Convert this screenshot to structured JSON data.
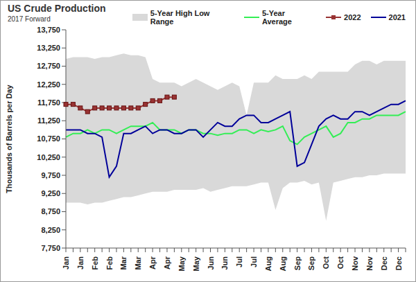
{
  "chart_data": {
    "type": "line",
    "title": "US Crude Production",
    "subtitle": "2017 Forward",
    "y_label": "Thousands of Barrels per Day",
    "categories": [
      "Jan",
      null,
      "Jan",
      null,
      "Feb",
      null,
      "Feb",
      null,
      "Mar",
      null,
      "Mar",
      null,
      "Apr",
      null,
      "Apr",
      null,
      "May",
      null,
      "May",
      null,
      "Jun",
      null,
      "Jun",
      null,
      "Jul",
      null,
      "Jul",
      null,
      "Aug",
      null,
      "Aug",
      null,
      "Sep",
      null,
      "Sep",
      null,
      "Oct",
      null,
      "Oct",
      null,
      "Nov",
      null,
      "Nov",
      null,
      "Dec",
      null,
      "Dec",
      null
    ],
    "ylim": [
      7750,
      13750
    ],
    "yticks": [
      {
        "value": 7750,
        "label": "7,750"
      },
      {
        "value": 8250,
        "label": "8,250"
      },
      {
        "value": 8750,
        "label": "8,750"
      },
      {
        "value": 9250,
        "label": "9,250"
      },
      {
        "value": 9750,
        "label": "9,750"
      },
      {
        "value": 10250,
        "label": "10,250"
      },
      {
        "value": 10750,
        "label": "10,750"
      },
      {
        "value": 11250,
        "label": "11,250"
      },
      {
        "value": 11750,
        "label": "11,750"
      },
      {
        "value": 12250,
        "label": "12,250"
      },
      {
        "value": 12750,
        "label": "12,750"
      },
      {
        "value": 13250,
        "label": "13,250"
      },
      {
        "value": 13750,
        "label": "13,750"
      }
    ],
    "grid": false,
    "legend": "top",
    "series": [
      {
        "name": "5-Year High Low Range",
        "type": "area",
        "color": "#d9d9d9",
        "values": [
          [
            9000,
            12950
          ],
          [
            9000,
            13000
          ],
          [
            9000,
            13000
          ],
          [
            8950,
            13000
          ],
          [
            9000,
            12950
          ],
          [
            9000,
            13000
          ],
          [
            9050,
            13000
          ],
          [
            9100,
            13050
          ],
          [
            9150,
            13100
          ],
          [
            9150,
            13050
          ],
          [
            9200,
            13050
          ],
          [
            9250,
            13000
          ],
          [
            9300,
            12400
          ],
          [
            9300,
            12300
          ],
          [
            9300,
            12300
          ],
          [
            9350,
            12300
          ],
          [
            9350,
            12200
          ],
          [
            9350,
            12300
          ],
          [
            9350,
            12400
          ],
          [
            9400,
            12300
          ],
          [
            9300,
            12200
          ],
          [
            9350,
            12100
          ],
          [
            9400,
            12200
          ],
          [
            9450,
            12300
          ],
          [
            9450,
            12200
          ],
          [
            9450,
            11400
          ],
          [
            9500,
            12300
          ],
          [
            9550,
            12300
          ],
          [
            9550,
            12300
          ],
          [
            8800,
            12500
          ],
          [
            9400,
            12400
          ],
          [
            9550,
            12400
          ],
          [
            9550,
            12400
          ],
          [
            9600,
            12500
          ],
          [
            9500,
            12400
          ],
          [
            9550,
            12600
          ],
          [
            8500,
            12600
          ],
          [
            9550,
            12600
          ],
          [
            9600,
            12600
          ],
          [
            9650,
            12600
          ],
          [
            9700,
            12800
          ],
          [
            9700,
            12900
          ],
          [
            9750,
            12900
          ],
          [
            9750,
            12800
          ],
          [
            9800,
            12900
          ],
          [
            9800,
            12900
          ],
          [
            9800,
            12900
          ],
          [
            9800,
            12900
          ]
        ]
      },
      {
        "name": "5-Year Average",
        "type": "line",
        "color": "#33ee55",
        "values": [
          10800,
          10900,
          10900,
          11000,
          10900,
          11000,
          11000,
          10900,
          11000,
          11100,
          11100,
          11100,
          11200,
          11000,
          11000,
          11000,
          10900,
          11000,
          11000,
          10900,
          10900,
          10850,
          10900,
          10900,
          11000,
          11000,
          10900,
          11000,
          10950,
          11000,
          11100,
          10700,
          10600,
          10800,
          10900,
          11000,
          11100,
          10800,
          10900,
          11200,
          11200,
          11300,
          11300,
          11400,
          11400,
          11400,
          11400,
          11500
        ]
      },
      {
        "name": "2022",
        "type": "line",
        "color": "#993333",
        "marker": "square",
        "values": [
          11700,
          11700,
          11600,
          11500,
          11600,
          11600,
          11600,
          11600,
          11600,
          11600,
          11600,
          11700,
          11800,
          11800,
          11900,
          11900,
          null,
          null,
          null,
          null,
          null,
          null,
          null,
          null,
          null,
          null,
          null,
          null,
          null,
          null,
          null,
          null,
          null,
          null,
          null,
          null,
          null,
          null,
          null,
          null,
          null,
          null,
          null,
          null,
          null,
          null,
          null,
          null
        ]
      },
      {
        "name": "2021",
        "type": "line",
        "color": "#000099",
        "values": [
          11000,
          11000,
          11000,
          10900,
          10900,
          10800,
          9700,
          10000,
          10900,
          10900,
          11000,
          11100,
          10900,
          11000,
          11000,
          10900,
          10900,
          11000,
          11000,
          10800,
          11000,
          11200,
          11100,
          11100,
          11300,
          11400,
          11400,
          11200,
          11200,
          11300,
          11400,
          11500,
          10000,
          10100,
          10600,
          11100,
          11300,
          11400,
          11300,
          11300,
          11500,
          11500,
          11400,
          11500,
          11600,
          11700,
          11700,
          11800
        ]
      }
    ]
  }
}
